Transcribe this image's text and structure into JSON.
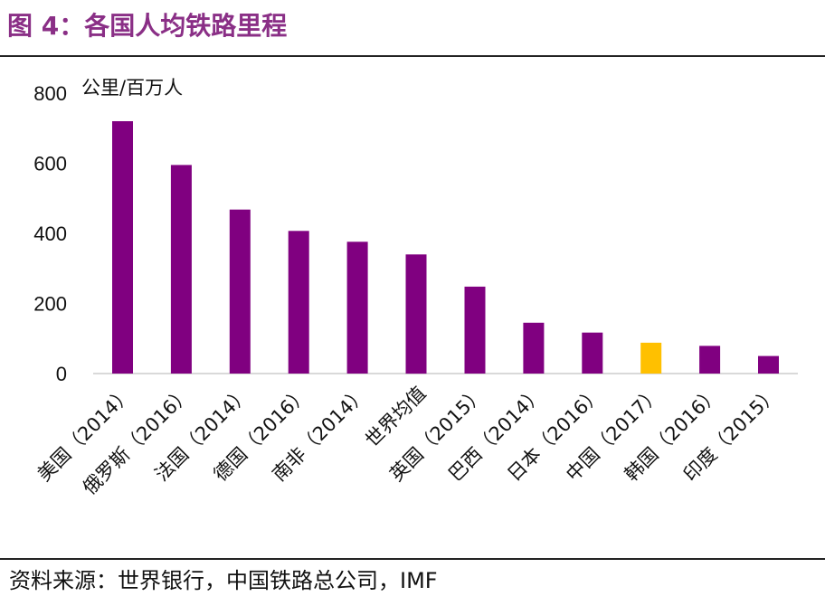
{
  "title": "图 4：各国人均铁路里程",
  "source": "资料来源：世界银行，中国铁路总公司，IMF",
  "colors": {
    "title": "#8a2f86",
    "bar": "#800080",
    "highlight": "#ffc000"
  },
  "chart_data": {
    "type": "bar",
    "unit_label": "公里/百万人",
    "ylim": [
      0,
      800
    ],
    "yticks": [
      0,
      200,
      400,
      600,
      800
    ],
    "categories": [
      "美国（2014）",
      "俄罗斯（2016）",
      "法国（2014）",
      "德国（2016）",
      "南非（2014）",
      "世界均值",
      "英国（2015）",
      "巴西（2014）",
      "日本（2016）",
      "中国（2017）",
      "韩国（2016）",
      "印度（2015）"
    ],
    "values": [
      720,
      595,
      468,
      407,
      376,
      340,
      248,
      145,
      117,
      88,
      79,
      50
    ],
    "highlight_index": 9,
    "grid": false,
    "legend": "none"
  }
}
